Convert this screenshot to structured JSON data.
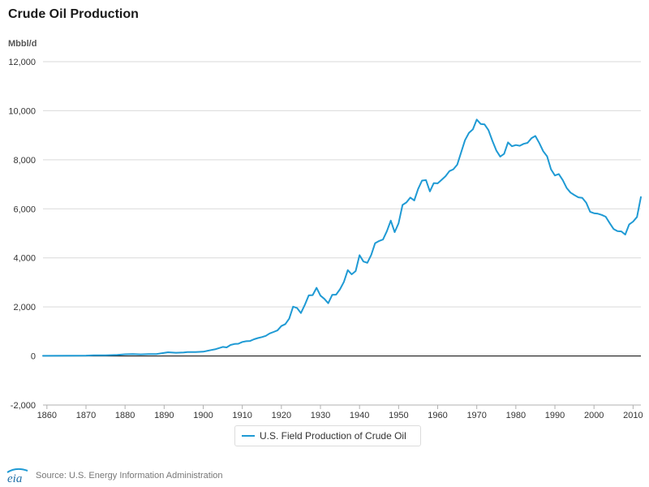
{
  "header": {
    "title": "Crude Oil Production",
    "unit_label": "Mbbl/d"
  },
  "legend": {
    "label": "U.S. Field Production of Crude Oil",
    "color": "#1f9ad4"
  },
  "footer": {
    "source": "Source: U.S. Energy Information Administration",
    "logo_text": "eia"
  },
  "colors": {
    "series": "#1f9ad4",
    "grid": "#d9d9d9",
    "zero_line": "#000000",
    "axis_text": "#333333"
  },
  "chart_data": {
    "type": "line",
    "title": "Crude Oil Production",
    "ylabel": "Mbbl/d",
    "xlabel": "",
    "ylim": [
      -2000,
      12000
    ],
    "xlim": [
      1859,
      2012
    ],
    "yticks": [
      -2000,
      0,
      2000,
      4000,
      6000,
      8000,
      10000,
      12000
    ],
    "ytick_labels": [
      "-2,000",
      "0",
      "2,000",
      "4,000",
      "6,000",
      "8,000",
      "10,000",
      "12,000"
    ],
    "xticks": [
      1860,
      1870,
      1880,
      1890,
      1900,
      1910,
      1920,
      1930,
      1940,
      1950,
      1960,
      1970,
      1980,
      1990,
      2000,
      2010
    ],
    "grid": true,
    "legend_position": "bottom-center",
    "series": [
      {
        "name": "U.S. Field Production of Crude Oil",
        "color": "#1f9ad4",
        "x": [
          1859,
          1865,
          1870,
          1872,
          1875,
          1878,
          1880,
          1882,
          1884,
          1886,
          1888,
          1890,
          1891,
          1893,
          1895,
          1896,
          1898,
          1900,
          1902,
          1903,
          1904,
          1905,
          1906,
          1907,
          1908,
          1909,
          1910,
          1911,
          1912,
          1913,
          1914,
          1915,
          1916,
          1917,
          1918,
          1919,
          1920,
          1921,
          1922,
          1923,
          1924,
          1925,
          1926,
          1927,
          1928,
          1929,
          1930,
          1931,
          1932,
          1933,
          1934,
          1935,
          1936,
          1937,
          1938,
          1939,
          1940,
          1941,
          1942,
          1943,
          1944,
          1945,
          1946,
          1947,
          1948,
          1949,
          1950,
          1951,
          1952,
          1953,
          1954,
          1955,
          1956,
          1957,
          1958,
          1959,
          1960,
          1961,
          1962,
          1963,
          1964,
          1965,
          1966,
          1967,
          1968,
          1969,
          1970,
          1971,
          1972,
          1973,
          1974,
          1975,
          1976,
          1977,
          1978,
          1979,
          1980,
          1981,
          1982,
          1983,
          1984,
          1985,
          1986,
          1987,
          1988,
          1989,
          1990,
          1991,
          1992,
          1993,
          1994,
          1995,
          1996,
          1997,
          1998,
          1999,
          2000,
          2001,
          2002,
          2003,
          2004,
          2005,
          2006,
          2007,
          2008,
          2009,
          2010,
          2011,
          2012
        ],
        "y": [
          5,
          10,
          15,
          25,
          30,
          45,
          70,
          80,
          65,
          75,
          80,
          125,
          150,
          130,
          140,
          160,
          160,
          175,
          240,
          270,
          320,
          370,
          350,
          450,
          490,
          500,
          570,
          600,
          610,
          680,
          730,
          770,
          820,
          920,
          980,
          1040,
          1220,
          1300,
          1520,
          2010,
          1960,
          1750,
          2080,
          2470,
          2480,
          2780,
          2460,
          2330,
          2150,
          2490,
          2500,
          2720,
          3020,
          3500,
          3330,
          3460,
          4110,
          3850,
          3800,
          4120,
          4600,
          4690,
          4750,
          5090,
          5520,
          5050,
          5410,
          6160,
          6260,
          6460,
          6340,
          6810,
          7150,
          7170,
          6710,
          7050,
          7040,
          7180,
          7330,
          7540,
          7610,
          7800,
          8300,
          8800,
          9100,
          9240,
          9640,
          9460,
          9440,
          9210,
          8770,
          8380,
          8130,
          8240,
          8710,
          8550,
          8600,
          8570,
          8650,
          8690,
          8880,
          8970,
          8680,
          8350,
          8140,
          7610,
          7360,
          7420,
          7170,
          6850,
          6660,
          6560,
          6470,
          6450,
          6250,
          5880,
          5820,
          5800,
          5750,
          5680,
          5420,
          5180,
          5090,
          5080,
          4950,
          5360,
          5480,
          5670,
          6480
        ]
      }
    ]
  }
}
